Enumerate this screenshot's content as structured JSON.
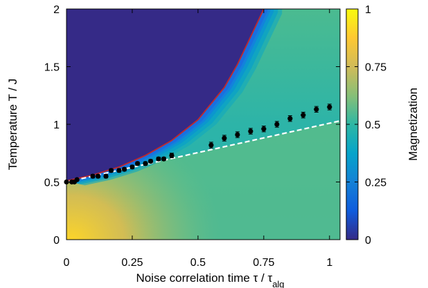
{
  "chart_data": {
    "type": "heatmap",
    "title": "",
    "xlabel": "Noise correlation time τ / τ",
    "xlabel_sub": "alg",
    "ylabel": "Temperature T / J",
    "xlim": [
      0,
      1.04
    ],
    "ylim": [
      0,
      2
    ],
    "x_ticks": [
      0,
      0.25,
      0.5,
      0.75,
      1
    ],
    "x_tick_labels": [
      "0",
      "0.25",
      "0.5",
      "0.75",
      "1"
    ],
    "y_ticks": [
      0,
      0.5,
      1,
      1.5,
      2
    ],
    "y_tick_labels": [
      "0",
      "0.5",
      "1",
      "1.5",
      "2"
    ],
    "colorbar": {
      "label": "Magnetization",
      "range": [
        0,
        1
      ],
      "ticks": [
        0,
        0.25,
        0.5,
        0.75,
        1
      ],
      "tick_labels": [
        "0",
        "0.25",
        "0.5",
        "0.75",
        "1"
      ],
      "colormap": [
        "#352a87",
        "#0f5cdd",
        "#1481d6",
        "#06a4ca",
        "#2eb7a4",
        "#87bf77",
        "#d1bb59",
        "#fec832",
        "#f9fb0e"
      ]
    },
    "boundary_curve": {
      "color": "#c0282c",
      "x": [
        0,
        0.1,
        0.2,
        0.3,
        0.4,
        0.5,
        0.6,
        0.65,
        0.7,
        0.75
      ],
      "y": [
        0.51,
        0.56,
        0.63,
        0.73,
        0.86,
        1.04,
        1.32,
        1.52,
        1.76,
        2.0
      ]
    },
    "fit_line": {
      "color": "#ffffff",
      "style": "dashed",
      "x": [
        0,
        1.04
      ],
      "y": [
        0.5,
        1.03
      ]
    },
    "points": {
      "color": "#000000",
      "x": [
        0,
        0.02,
        0.03,
        0.04,
        0.1,
        0.12,
        0.15,
        0.17,
        0.2,
        0.22,
        0.25,
        0.27,
        0.3,
        0.32,
        0.35,
        0.37,
        0.4,
        0.55,
        0.6,
        0.65,
        0.7,
        0.75,
        0.8,
        0.85,
        0.9,
        0.95,
        1.0
      ],
      "y": [
        0.5,
        0.5,
        0.5,
        0.52,
        0.55,
        0.55,
        0.55,
        0.6,
        0.6,
        0.61,
        0.63,
        0.66,
        0.66,
        0.68,
        0.7,
        0.7,
        0.73,
        0.82,
        0.88,
        0.91,
        0.94,
        0.96,
        1.0,
        1.05,
        1.08,
        1.13,
        1.15
      ],
      "err": [
        0.01,
        0.01,
        0.01,
        0.01,
        0.015,
        0.015,
        0.015,
        0.015,
        0.015,
        0.015,
        0.015,
        0.015,
        0.015,
        0.015,
        0.015,
        0.015,
        0.02,
        0.025,
        0.025,
        0.025,
        0.025,
        0.025,
        0.025,
        0.025,
        0.025,
        0.025,
        0.025
      ]
    }
  }
}
